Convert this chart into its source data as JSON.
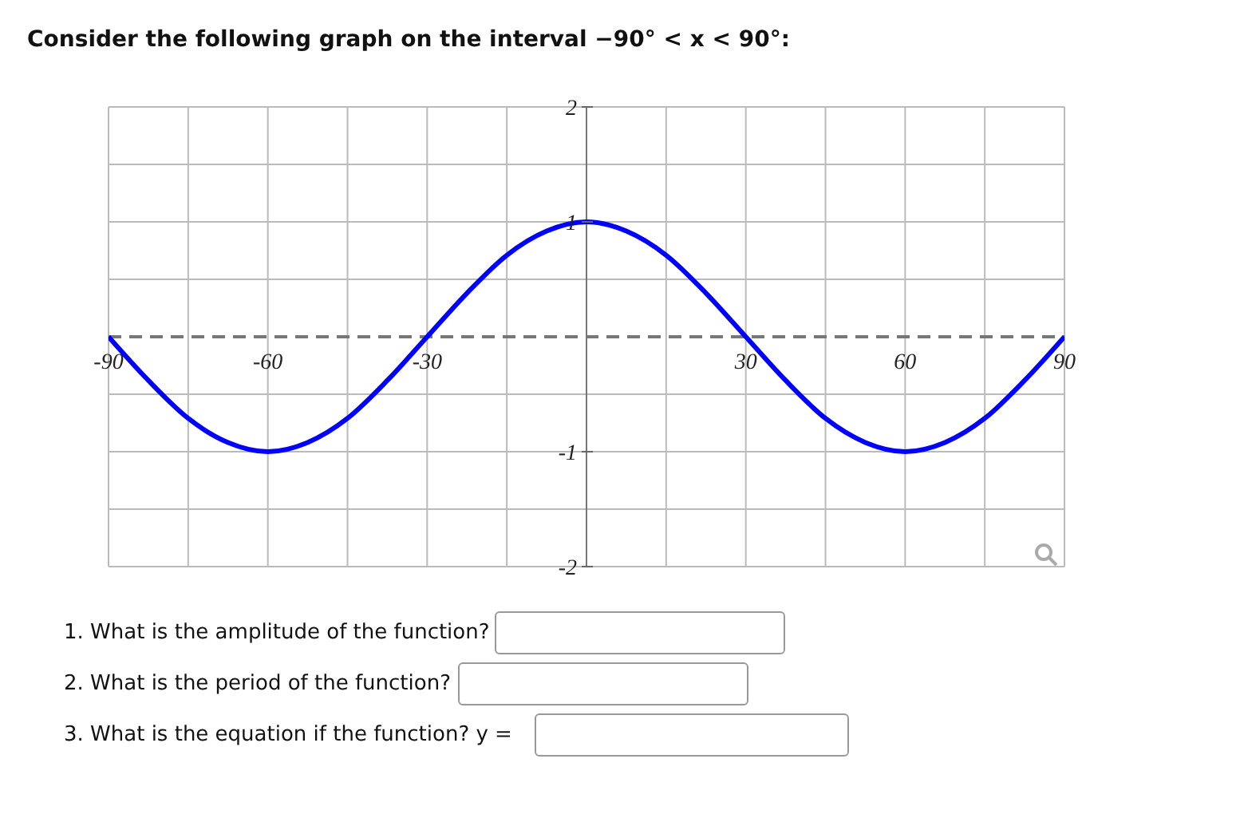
{
  "chart_data": {
    "type": "line",
    "title": "Consider the following graph on the interval −90° < x < 90°:",
    "annotations": [
      "1. What is the amplitude of the function?",
      "2. What is the period of the function?",
      "3. What is the equation if the function? y ="
    ],
    "x": [
      -90,
      -82.5,
      -75,
      -67.5,
      -60,
      -52.5,
      -45,
      -37.5,
      -30,
      -22.5,
      -15,
      -7.5,
      0,
      7.5,
      15,
      22.5,
      30,
      37.5,
      45,
      52.5,
      60,
      67.5,
      75,
      82.5,
      90
    ],
    "series": [
      {
        "color": "#0000ff",
        "values": [
          0,
          -0.38,
          -0.71,
          -0.92,
          -1,
          -0.92,
          -0.71,
          -0.38,
          0,
          0.38,
          0.71,
          0.92,
          1,
          0.92,
          0.71,
          0.38,
          0,
          -0.38,
          -0.71,
          -0.92,
          -1,
          -0.92,
          -0.71,
          -0.38,
          0
        ]
      }
    ],
    "xlim": [
      -90,
      90
    ],
    "ylim": [
      -2,
      2
    ],
    "xticks": [
      {
        "value": -90,
        "label": "-90"
      },
      {
        "value": -75,
        "label": null
      },
      -60,
      {
        "value": -45,
        "label": null
      },
      -30,
      {
        "value": -15,
        "label": null
      },
      {
        "value": 15,
        "label": null
      },
      30,
      {
        "value": 45,
        "label": null
      },
      60,
      {
        "value": 75,
        "label": null
      },
      90
    ],
    "yticks": [
      2,
      {
        "value": 1.5,
        "label": null
      },
      1,
      {
        "value": 0.5,
        "label": null
      },
      {
        "value": -0.5,
        "label": null
      },
      -1,
      {
        "value": -1.5,
        "label": null
      },
      -2
    ],
    "ref_lines": [
      {
        "axis": "y",
        "value": 0,
        "color": "#777777",
        "line_style": "dashed"
      }
    ],
    "grid": true,
    "marker": "none",
    "line_style": "solid"
  }
}
